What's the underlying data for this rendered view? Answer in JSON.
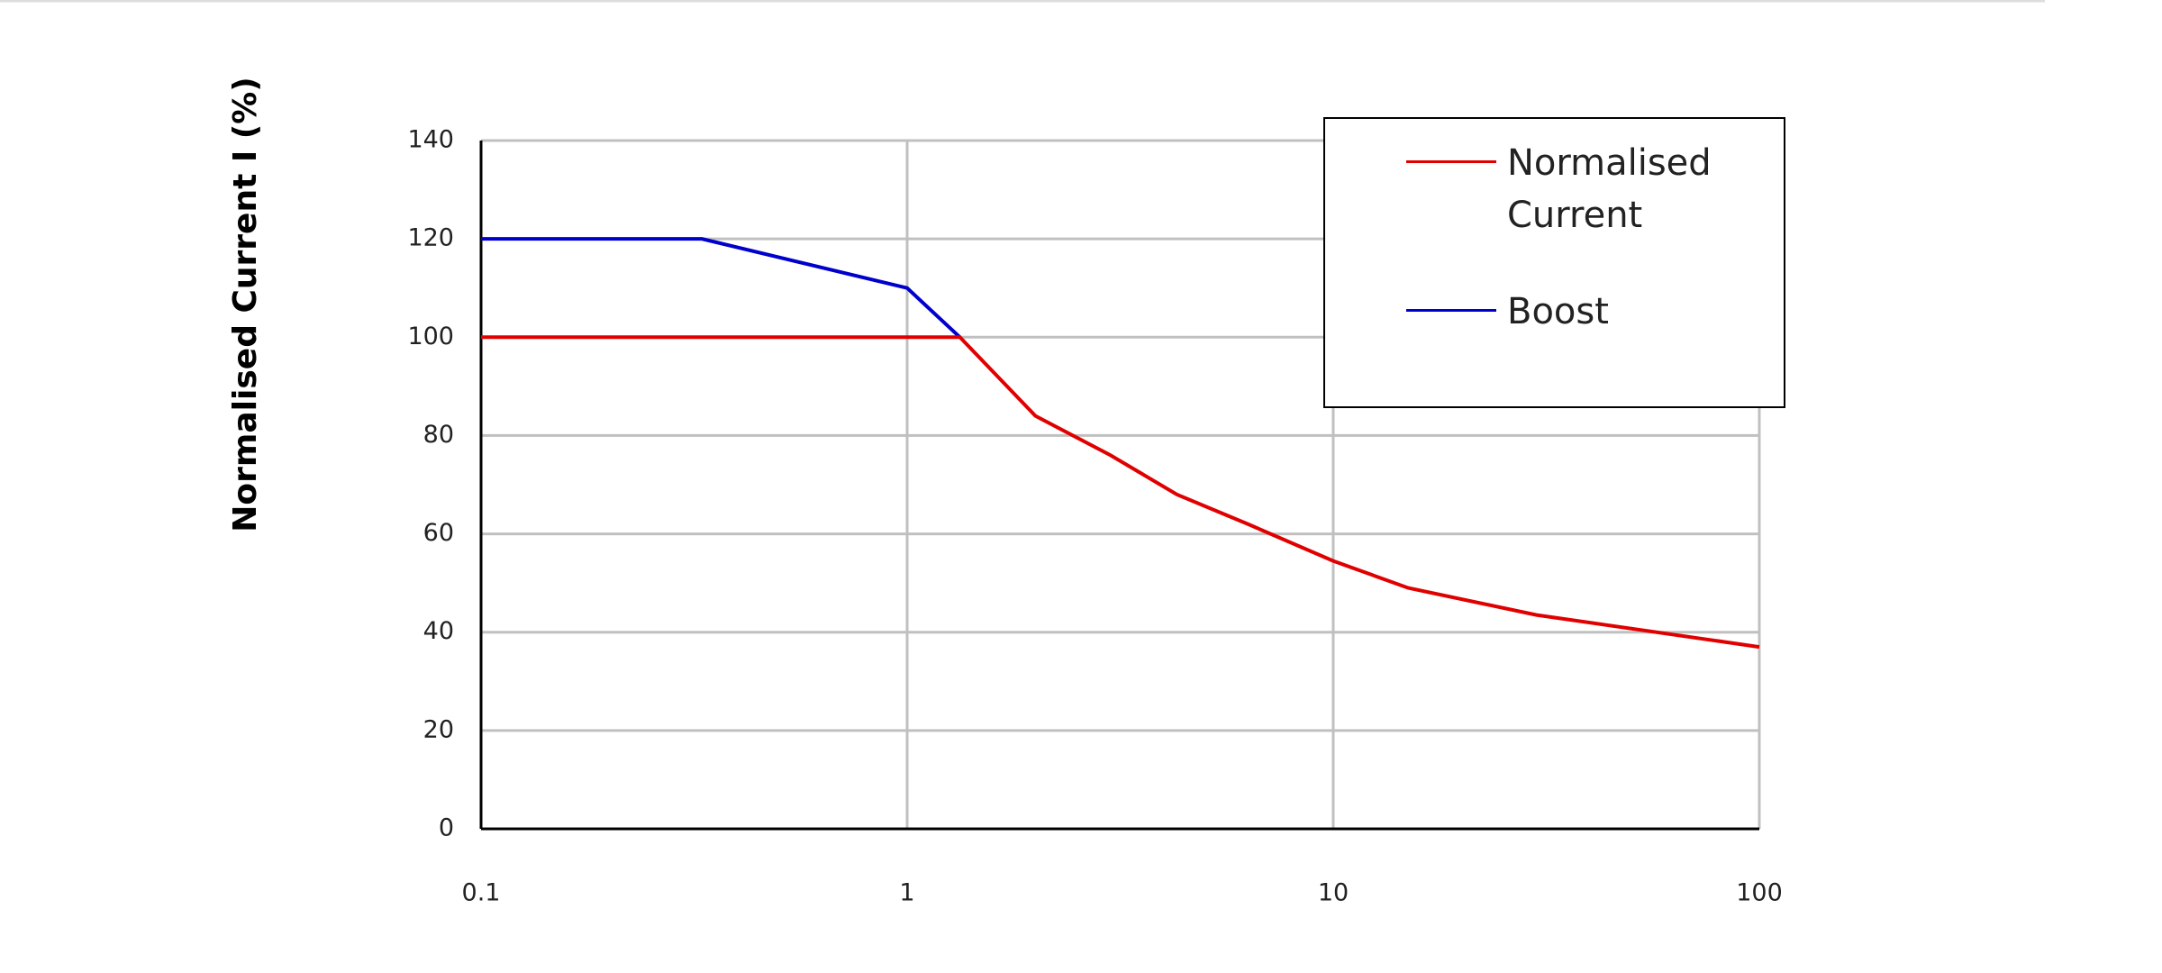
{
  "chart_data": {
    "type": "line",
    "ylabel": "Normalised Current I (%)",
    "xscale": "log",
    "xlim": [
      0.1,
      100
    ],
    "xticks": [
      0.1,
      1,
      10,
      100
    ],
    "ylim": [
      0,
      140
    ],
    "yticks": [
      0,
      20,
      40,
      60,
      80,
      100,
      120,
      140
    ],
    "grid": true,
    "legend": "upper right",
    "series": [
      {
        "name": "Normalised Current",
        "color": "#e00000",
        "x": [
          0.1,
          1.33,
          2,
          3,
          4.3,
          6.3,
          10,
          15,
          30,
          100
        ],
        "values": [
          100,
          100,
          84,
          76,
          68,
          62,
          54.5,
          49,
          43.5,
          37
        ]
      },
      {
        "name": "Boost",
        "color": "#0000cc",
        "x": [
          0.1,
          0.33,
          1,
          1.33
        ],
        "values": [
          120,
          120,
          110,
          100
        ]
      }
    ]
  }
}
